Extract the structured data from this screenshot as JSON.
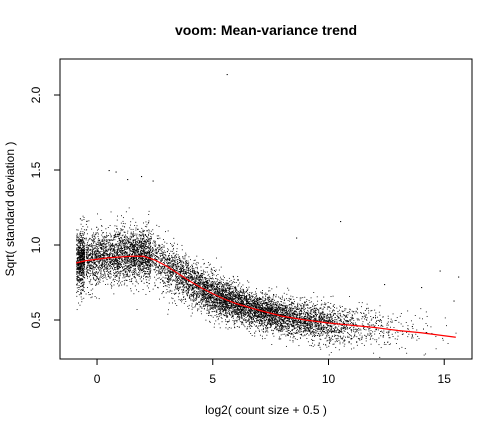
{
  "chart_data": {
    "type": "scatter",
    "title": "voom: Mean-variance trend",
    "xlabel": "log2( count size + 0.5 )",
    "ylabel": "Sqrt( standard deviation )",
    "xlim": [
      -1.6,
      16.2
    ],
    "ylim": [
      0.24,
      2.24
    ],
    "x_ticks": [
      0,
      5,
      10,
      15
    ],
    "x_tick_labels": [
      "0",
      "5",
      "10",
      "15"
    ],
    "y_ticks": [
      0.5,
      1.0,
      1.5,
      2.0
    ],
    "y_tick_labels": [
      "0.5",
      "1.0",
      "1.5",
      "2.0"
    ],
    "grid": false,
    "colors": {
      "points": "#000000",
      "trend": "#ff0000",
      "axes": "#000000"
    },
    "trend_line": {
      "x": [
        -0.9,
        -0.5,
        0,
        0.5,
        1,
        1.5,
        2,
        2.5,
        3,
        3.5,
        4,
        4.5,
        5,
        5.5,
        6,
        7,
        8,
        9,
        10,
        11,
        12,
        13,
        14,
        15,
        15.5
      ],
      "y": [
        0.88,
        0.895,
        0.905,
        0.915,
        0.92,
        0.925,
        0.925,
        0.9,
        0.86,
        0.81,
        0.76,
        0.715,
        0.675,
        0.64,
        0.61,
        0.565,
        0.525,
        0.5,
        0.48,
        0.465,
        0.45,
        0.43,
        0.415,
        0.395,
        0.385
      ]
    },
    "points_trend": {
      "x": [
        -0.9,
        -0.5,
        0,
        0.5,
        1,
        1.5,
        2,
        2.5,
        3,
        3.5,
        4,
        4.5,
        5,
        5.5,
        6,
        7,
        8,
        9,
        10,
        11,
        12,
        13,
        14,
        15,
        15.5
      ],
      "sd": [
        0.1,
        0.1,
        0.09,
        0.09,
        0.09,
        0.085,
        0.085,
        0.085,
        0.085,
        0.08,
        0.075,
        0.07,
        0.07,
        0.065,
        0.065,
        0.06,
        0.06,
        0.06,
        0.065,
        0.07,
        0.07,
        0.07,
        0.07,
        0.07,
        0.07
      ]
    },
    "outliers": [
      {
        "x": 5.6,
        "y": 2.14
      },
      {
        "x": 0.5,
        "y": 1.5
      },
      {
        "x": 0.8,
        "y": 1.49
      },
      {
        "x": 1.9,
        "y": 1.46
      },
      {
        "x": 2.4,
        "y": 1.43
      },
      {
        "x": 1.3,
        "y": 1.44
      },
      {
        "x": 10.5,
        "y": 1.16
      },
      {
        "x": 8.6,
        "y": 1.05
      },
      {
        "x": 15.6,
        "y": 0.79
      },
      {
        "x": 14.8,
        "y": 0.83
      },
      {
        "x": 14.0,
        "y": 0.72
      },
      {
        "x": 15.4,
        "y": 0.63
      },
      {
        "x": 14.2,
        "y": 0.42
      },
      {
        "x": 13.6,
        "y": 0.46
      },
      {
        "x": 12.4,
        "y": 0.74
      }
    ],
    "n_points": 9000
  }
}
